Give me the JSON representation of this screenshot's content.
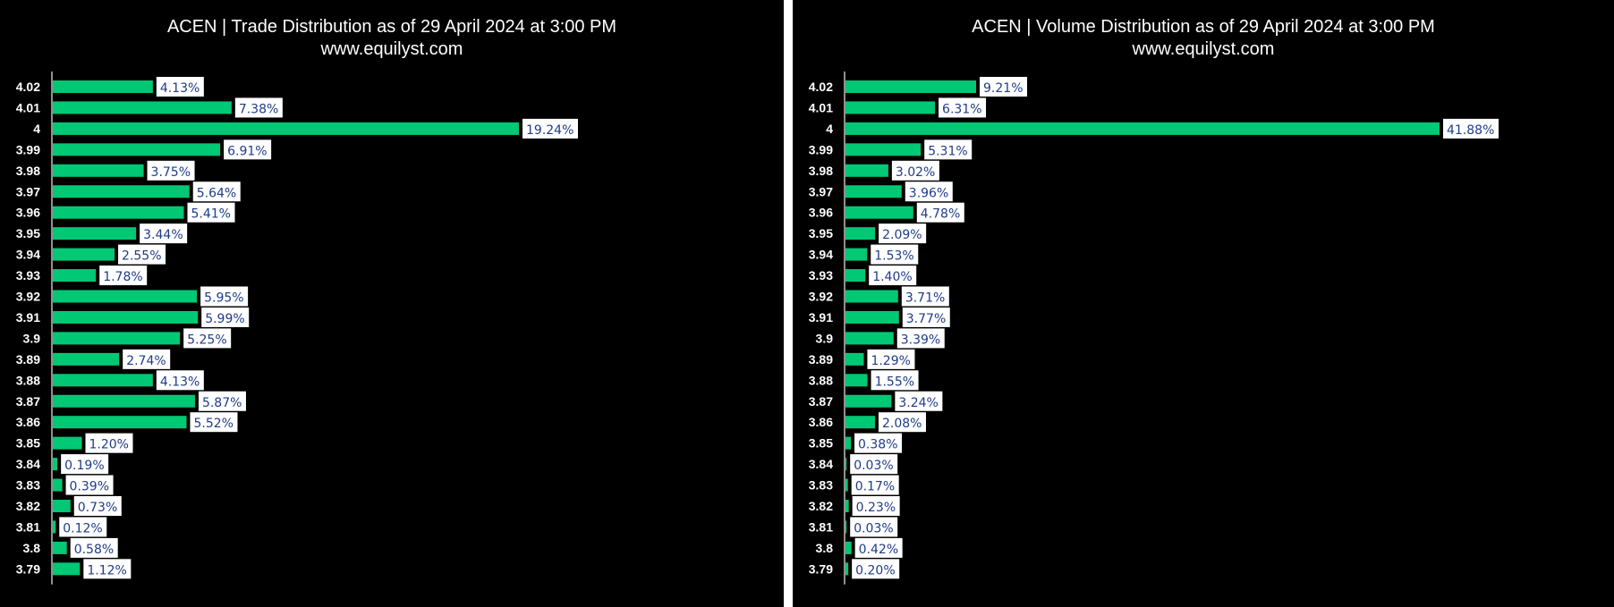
{
  "colors": {
    "bar": "#00c875",
    "background": "#000000",
    "text": "#ffffff",
    "label_text": "#1f3c88",
    "label_bg": "#ffffff"
  },
  "chart_data": [
    {
      "type": "bar",
      "orientation": "horizontal",
      "title": "ACEN | Trade Distribution as of 29 April 2024 at 3:00 PM",
      "subtitle": "www.equilyst.com",
      "categories": [
        "4.02",
        "4.01",
        "4",
        "3.99",
        "3.98",
        "3.97",
        "3.96",
        "3.95",
        "3.94",
        "3.93",
        "3.92",
        "3.91",
        "3.9",
        "3.89",
        "3.88",
        "3.87",
        "3.86",
        "3.85",
        "3.84",
        "3.83",
        "3.82",
        "3.81",
        "3.8",
        "3.79"
      ],
      "values": [
        4.13,
        7.38,
        19.24,
        6.91,
        3.75,
        5.64,
        5.41,
        3.44,
        2.55,
        1.78,
        5.95,
        5.99,
        5.25,
        2.74,
        4.13,
        5.87,
        5.52,
        1.2,
        0.19,
        0.39,
        0.73,
        0.12,
        0.58,
        1.12
      ],
      "labels": [
        "4.13%",
        "7.38%",
        "19.24%",
        "6.91%",
        "3.75%",
        "5.64%",
        "5.41%",
        "3.44%",
        "2.55%",
        "1.78%",
        "5.95%",
        "5.99%",
        "5.25%",
        "2.74%",
        "4.13%",
        "5.87%",
        "5.52%",
        "1.20%",
        "0.19%",
        "0.39%",
        "0.73%",
        "0.12%",
        "0.58%",
        "1.12%"
      ],
      "xlim": [
        0,
        19.24
      ],
      "grid": false,
      "legend": "none"
    },
    {
      "type": "bar",
      "orientation": "horizontal",
      "title": "ACEN | Volume Distribution as of 29 April 2024 at 3:00 PM",
      "subtitle": "www.equilyst.com",
      "categories": [
        "4.02",
        "4.01",
        "4",
        "3.99",
        "3.98",
        "3.97",
        "3.96",
        "3.95",
        "3.94",
        "3.93",
        "3.92",
        "3.91",
        "3.9",
        "3.89",
        "3.88",
        "3.87",
        "3.86",
        "3.85",
        "3.84",
        "3.83",
        "3.82",
        "3.81",
        "3.8",
        "3.79"
      ],
      "values": [
        9.21,
        6.31,
        41.88,
        5.31,
        3.02,
        3.96,
        4.78,
        2.09,
        1.53,
        1.4,
        3.71,
        3.77,
        3.39,
        1.29,
        1.55,
        3.24,
        2.08,
        0.38,
        0.03,
        0.17,
        0.23,
        0.03,
        0.42,
        0.2
      ],
      "labels": [
        "9.21%",
        "6.31%",
        "41.88%",
        "5.31%",
        "3.02%",
        "3.96%",
        "4.78%",
        "2.09%",
        "1.53%",
        "1.40%",
        "3.71%",
        "3.77%",
        "3.39%",
        "1.29%",
        "1.55%",
        "3.24%",
        "2.08%",
        "0.38%",
        "0.03%",
        "0.17%",
        "0.23%",
        "0.03%",
        "0.42%",
        "0.20%"
      ],
      "xlim": [
        0,
        41.88
      ],
      "grid": false,
      "legend": "none"
    }
  ]
}
